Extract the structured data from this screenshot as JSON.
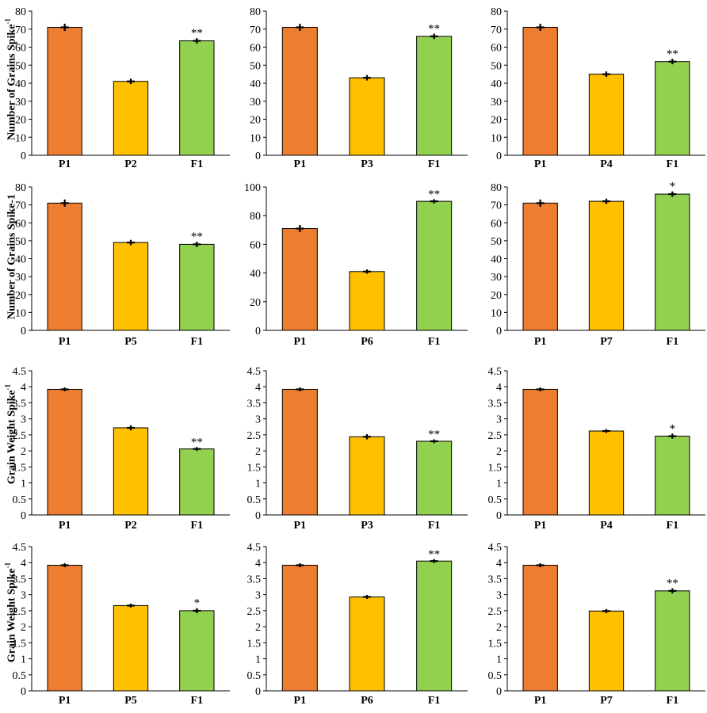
{
  "row_labels": [
    {
      "text": "Number of Grains Spike",
      "sup": "-1"
    },
    {
      "text": "Number of Grains Spike-1",
      "sup": ""
    },
    {
      "text": "Grain Weight Spike",
      "sup": "-1"
    },
    {
      "text": "Grain Weight Spike",
      "sup": "-1"
    }
  ],
  "colors": {
    "P1": "#ED7D31",
    "P": "#FFC000",
    "F1": "#92D050",
    "axis": "#000000"
  },
  "chart_data": [
    {
      "type": "bar",
      "categories": [
        "P1",
        "P2",
        "F1"
      ],
      "values": [
        71,
        41,
        63.5
      ],
      "errors": [
        2,
        1.5,
        1.5
      ],
      "significance": [
        "",
        "",
        "**"
      ],
      "ylim": [
        0,
        80
      ],
      "yticks": [
        0,
        10,
        20,
        30,
        40,
        50,
        60,
        70,
        80
      ],
      "ylabel": "Number of Grains Spike-1"
    },
    {
      "type": "bar",
      "categories": [
        "P1",
        "P3",
        "F1"
      ],
      "values": [
        71,
        43,
        66
      ],
      "errors": [
        2,
        1.5,
        1.5
      ],
      "significance": [
        "",
        "",
        "**"
      ],
      "ylim": [
        0,
        80
      ],
      "yticks": [
        0,
        10,
        20,
        30,
        40,
        50,
        60,
        70,
        80
      ]
    },
    {
      "type": "bar",
      "categories": [
        "P1",
        "P4",
        "F1"
      ],
      "values": [
        71,
        45,
        52
      ],
      "errors": [
        2,
        1.5,
        1.5
      ],
      "significance": [
        "",
        "",
        "**"
      ],
      "ylim": [
        0,
        80
      ],
      "yticks": [
        0,
        10,
        20,
        30,
        40,
        50,
        60,
        70,
        80
      ]
    },
    {
      "type": "bar",
      "categories": [
        "P1",
        "P5",
        "F1"
      ],
      "values": [
        71,
        49,
        48
      ],
      "errors": [
        2,
        1.5,
        1.5
      ],
      "significance": [
        "",
        "",
        "**"
      ],
      "ylim": [
        0,
        80
      ],
      "yticks": [
        0,
        10,
        20,
        30,
        40,
        50,
        60,
        70,
        80
      ],
      "ylabel": "Number of Grains Spike-1"
    },
    {
      "type": "bar",
      "categories": [
        "P1",
        "P6",
        "F1"
      ],
      "values": [
        71,
        41,
        90
      ],
      "errors": [
        2.5,
        1.5,
        1.5
      ],
      "significance": [
        "",
        "",
        "**"
      ],
      "ylim": [
        0,
        100
      ],
      "yticks": [
        0,
        20,
        40,
        60,
        80,
        100
      ]
    },
    {
      "type": "bar",
      "categories": [
        "P1",
        "P7",
        "F1"
      ],
      "values": [
        71,
        72,
        76
      ],
      "errors": [
        2,
        1.5,
        1.5
      ],
      "significance": [
        "",
        "",
        "*"
      ],
      "ylim": [
        0,
        80
      ],
      "yticks": [
        0,
        10,
        20,
        30,
        40,
        50,
        60,
        70,
        80
      ]
    },
    {
      "type": "bar",
      "categories": [
        "P1",
        "P2",
        "F1"
      ],
      "values": [
        3.92,
        2.72,
        2.06
      ],
      "errors": [
        0.06,
        0.08,
        0.06
      ],
      "significance": [
        "",
        "",
        "**"
      ],
      "ylim": [
        0,
        4.5
      ],
      "yticks": [
        0,
        0.5,
        1,
        1.5,
        2,
        2.5,
        3,
        3.5,
        4,
        4.5
      ],
      "ylabel": "Grain Weight Spike-1"
    },
    {
      "type": "bar",
      "categories": [
        "P1",
        "P3",
        "F1"
      ],
      "values": [
        3.92,
        2.44,
        2.3
      ],
      "errors": [
        0.06,
        0.08,
        0.06
      ],
      "significance": [
        "",
        "",
        "**"
      ],
      "ylim": [
        0,
        4.5
      ],
      "yticks": [
        0,
        0.5,
        1,
        1.5,
        2,
        2.5,
        3,
        3.5,
        4,
        4.5
      ]
    },
    {
      "type": "bar",
      "categories": [
        "P1",
        "P4",
        "F1"
      ],
      "values": [
        3.92,
        2.62,
        2.46
      ],
      "errors": [
        0.06,
        0.06,
        0.08
      ],
      "significance": [
        "",
        "",
        "*"
      ],
      "ylim": [
        0,
        4.5
      ],
      "yticks": [
        0,
        0.5,
        1,
        1.5,
        2,
        2.5,
        3,
        3.5,
        4,
        4.5
      ]
    },
    {
      "type": "bar",
      "categories": [
        "P1",
        "P5",
        "F1"
      ],
      "values": [
        3.92,
        2.66,
        2.5
      ],
      "errors": [
        0.06,
        0.06,
        0.08
      ],
      "significance": [
        "",
        "",
        "*"
      ],
      "ylim": [
        0,
        4.5
      ],
      "yticks": [
        0,
        0.5,
        1,
        1.5,
        2,
        2.5,
        3,
        3.5,
        4,
        4.5
      ],
      "ylabel": "Grain Weight Spike-1"
    },
    {
      "type": "bar",
      "categories": [
        "P1",
        "P6",
        "F1"
      ],
      "values": [
        3.92,
        2.93,
        4.05
      ],
      "errors": [
        0.06,
        0.06,
        0.06
      ],
      "significance": [
        "",
        "",
        "**"
      ],
      "ylim": [
        0,
        4.5
      ],
      "yticks": [
        0,
        0.5,
        1,
        1.5,
        2,
        2.5,
        3,
        3.5,
        4,
        4.5
      ]
    },
    {
      "type": "bar",
      "categories": [
        "P1",
        "P7",
        "F1"
      ],
      "values": [
        3.92,
        2.49,
        3.12
      ],
      "errors": [
        0.06,
        0.06,
        0.08
      ],
      "significance": [
        "",
        "",
        "**"
      ],
      "ylim": [
        0,
        4.5
      ],
      "yticks": [
        0,
        0.5,
        1,
        1.5,
        2,
        2.5,
        3,
        3.5,
        4,
        4.5
      ]
    }
  ]
}
